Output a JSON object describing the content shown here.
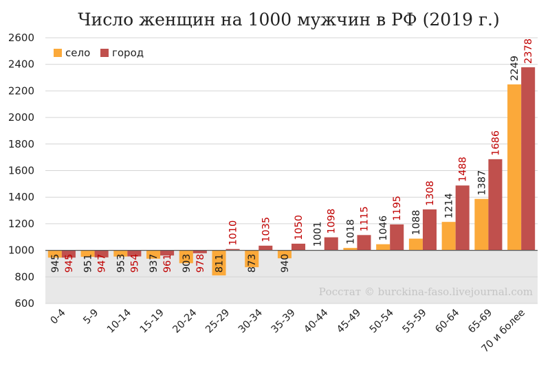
{
  "chart_data": {
    "type": "bar",
    "title": "Число женщин на 1000 мужчин в РФ (2019 г.)",
    "categories": [
      "0-4",
      "5-9",
      "10-14",
      "15-19",
      "20-24",
      "25-29",
      "30-34",
      "35-39",
      "40-44",
      "45-49",
      "50-54",
      "55-59",
      "60-64",
      "65-69",
      "70 и более"
    ],
    "series": [
      {
        "name": "село",
        "color": "#fba93a",
        "label_color": "#1a1a1a",
        "values": [
          945,
          951,
          953,
          937,
          903,
          811,
          873,
          940,
          1001,
          1018,
          1046,
          1088,
          1214,
          1387,
          2249
        ]
      },
      {
        "name": "город",
        "color": "#c0504d",
        "label_color": "#c00000",
        "values": [
          945,
          947,
          954,
          961,
          978,
          1010,
          1035,
          1050,
          1098,
          1115,
          1195,
          1308,
          1488,
          1686,
          2378
        ]
      }
    ],
    "baseline": 1000,
    "ylim": [
      600,
      2600
    ],
    "yticks": [
      600,
      800,
      1000,
      1200,
      1400,
      1600,
      1800,
      2000,
      2200,
      2400,
      2600
    ],
    "grid": true,
    "legend_position": "top-left",
    "below_baseline_shading": "#e8e8e8",
    "watermark": "Росстат © burckina-faso.livejournal.com"
  }
}
